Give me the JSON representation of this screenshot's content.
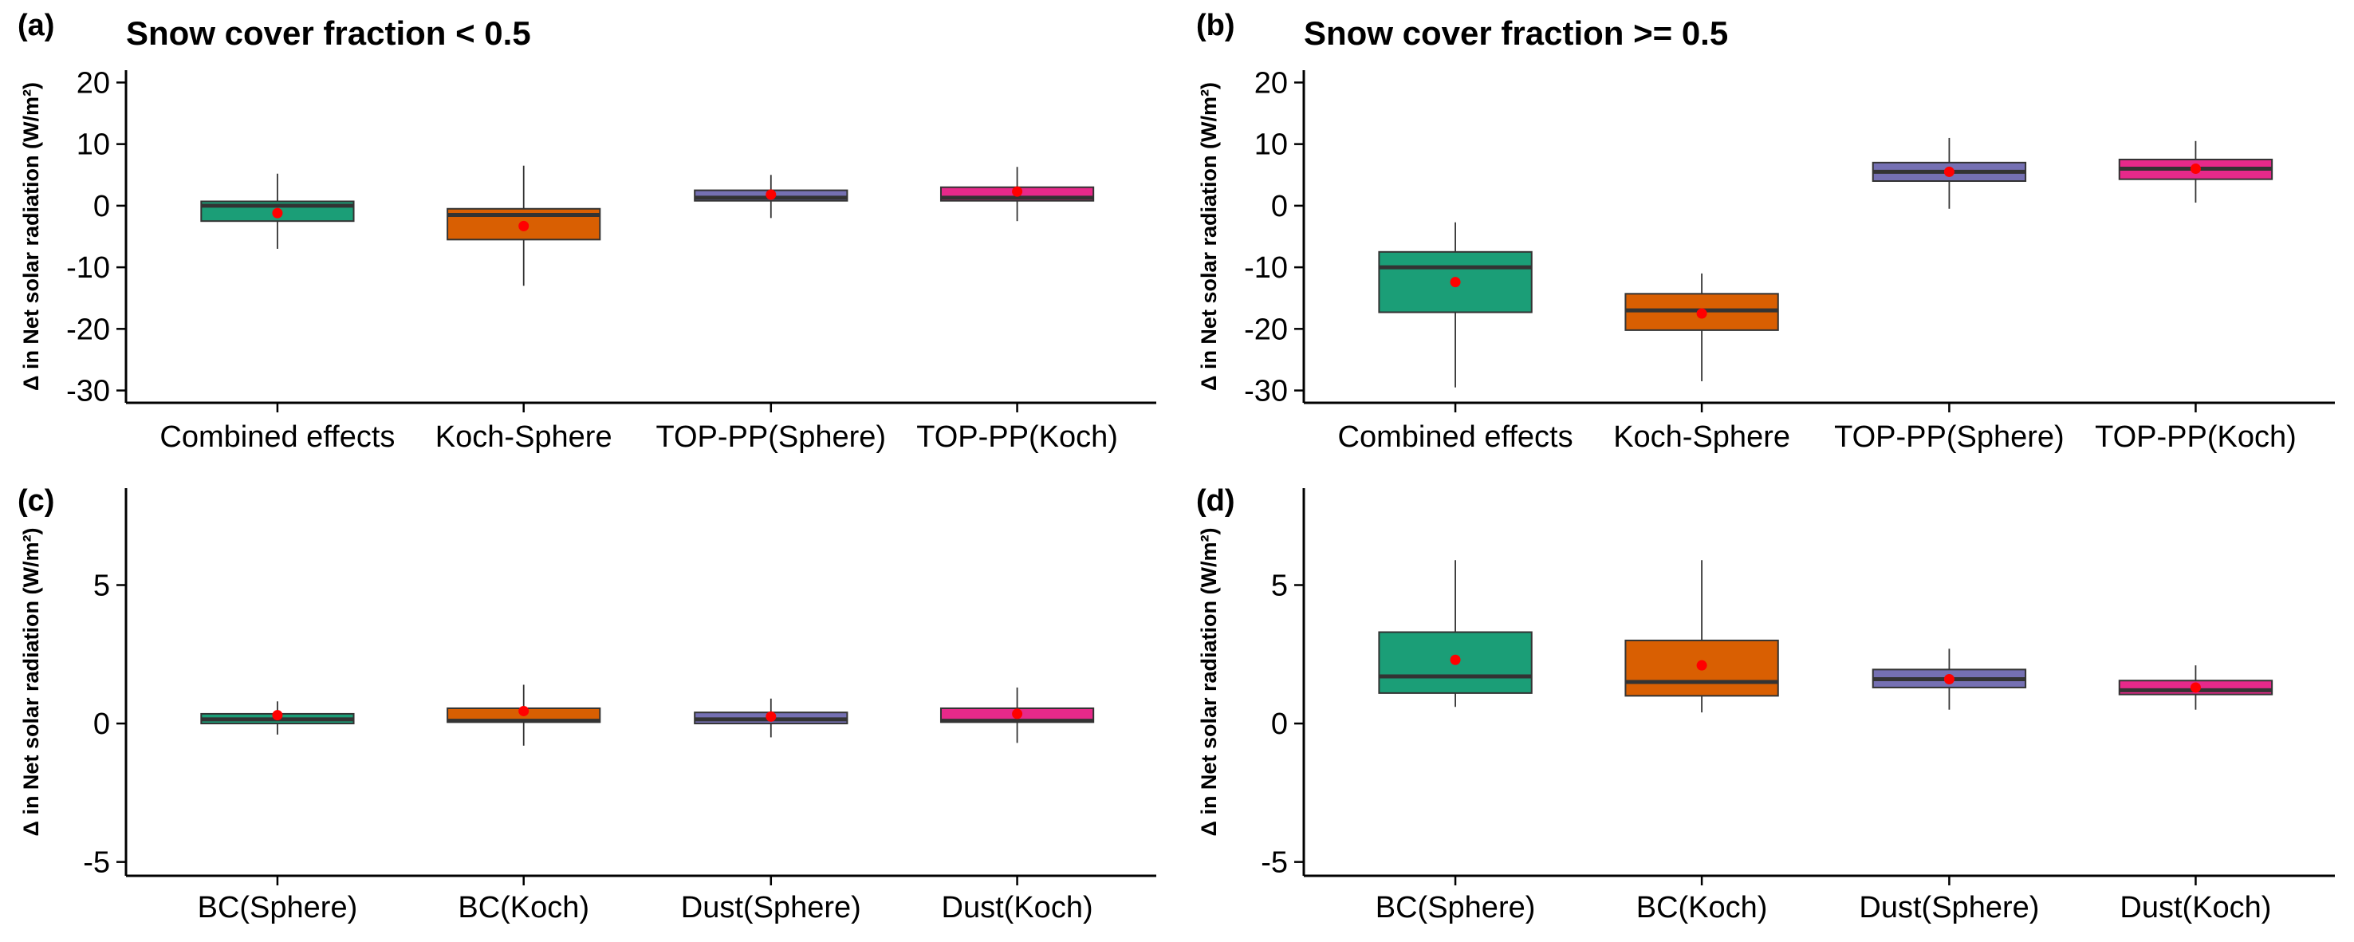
{
  "chart_data": [
    {
      "type": "box",
      "panel_label": "(a)",
      "title": "Snow cover fraction < 0.5",
      "ylabel": "Δ in Net solar radiation (W/m²)",
      "ylim": [
        -32,
        22
      ],
      "yticks": [
        20,
        10,
        0,
        -10,
        -20,
        -30
      ],
      "categories": [
        "Combined effects",
        "Koch-Sphere",
        "TOP-PP(Sphere)",
        "TOP-PP(Koch)"
      ],
      "colors": [
        "#1b9e77",
        "#d95f02",
        "#7570b3",
        "#e7298a"
      ],
      "boxes": [
        {
          "min": -7.0,
          "q1": -2.5,
          "median": 0.0,
          "q3": 0.7,
          "max": 5.2,
          "mean": -1.2
        },
        {
          "min": -13.0,
          "q1": -5.5,
          "median": -1.5,
          "q3": -0.5,
          "max": 6.5,
          "mean": -3.3
        },
        {
          "min": -2.0,
          "q1": 0.8,
          "median": 1.3,
          "q3": 2.5,
          "max": 5.0,
          "mean": 1.8
        },
        {
          "min": -2.5,
          "q1": 0.8,
          "median": 1.3,
          "q3": 3.0,
          "max": 6.3,
          "mean": 2.3
        }
      ],
      "grid": false
    },
    {
      "type": "box",
      "panel_label": "(b)",
      "title": "Snow cover fraction >= 0.5",
      "ylabel": "Δ in Net solar radiation (W/m²)",
      "ylim": [
        -32,
        22
      ],
      "yticks": [
        20,
        10,
        0,
        -10,
        -20,
        -30
      ],
      "categories": [
        "Combined effects",
        "Koch-Sphere",
        "TOP-PP(Sphere)",
        "TOP-PP(Koch)"
      ],
      "colors": [
        "#1b9e77",
        "#d95f02",
        "#7570b3",
        "#e7298a"
      ],
      "boxes": [
        {
          "min": -29.5,
          "q1": -17.3,
          "median": -10.0,
          "q3": -7.5,
          "max": -2.7,
          "mean": -12.4
        },
        {
          "min": -28.5,
          "q1": -20.2,
          "median": -17.0,
          "q3": -14.3,
          "max": -11.0,
          "mean": -17.5
        },
        {
          "min": -0.5,
          "q1": 4.0,
          "median": 5.5,
          "q3": 7.0,
          "max": 11.0,
          "mean": 5.5
        },
        {
          "min": 0.5,
          "q1": 4.3,
          "median": 6.0,
          "q3": 7.5,
          "max": 10.5,
          "mean": 6.0
        }
      ],
      "grid": false
    },
    {
      "type": "box",
      "panel_label": "(c)",
      "title": "",
      "ylabel": "Δ in Net solar radiation (W/m²)",
      "ylim": [
        -5.5,
        8.5
      ],
      "yticks": [
        5,
        0,
        -5
      ],
      "categories": [
        "BC(Sphere)",
        "BC(Koch)",
        "Dust(Sphere)",
        "Dust(Koch)"
      ],
      "colors": [
        "#1b9e77",
        "#d95f02",
        "#7570b3",
        "#e7298a"
      ],
      "boxes": [
        {
          "min": -0.4,
          "q1": 0.0,
          "median": 0.15,
          "q3": 0.35,
          "max": 0.8,
          "mean": 0.3
        },
        {
          "min": -0.8,
          "q1": 0.05,
          "median": 0.1,
          "q3": 0.55,
          "max": 1.4,
          "mean": 0.45
        },
        {
          "min": -0.5,
          "q1": 0.0,
          "median": 0.15,
          "q3": 0.4,
          "max": 0.9,
          "mean": 0.25
        },
        {
          "min": -0.7,
          "q1": 0.05,
          "median": 0.1,
          "q3": 0.55,
          "max": 1.3,
          "mean": 0.35
        }
      ],
      "grid": false
    },
    {
      "type": "box",
      "panel_label": "(d)",
      "title": "",
      "ylabel": "Δ in Net solar radiation (W/m²)",
      "ylim": [
        -5.5,
        8.5
      ],
      "yticks": [
        5,
        0,
        -5
      ],
      "categories": [
        "BC(Sphere)",
        "BC(Koch)",
        "Dust(Sphere)",
        "Dust(Koch)"
      ],
      "colors": [
        "#1b9e77",
        "#d95f02",
        "#7570b3",
        "#e7298a"
      ],
      "boxes": [
        {
          "min": 0.6,
          "q1": 1.1,
          "median": 1.7,
          "q3": 3.3,
          "max": 5.9,
          "mean": 2.3
        },
        {
          "min": 0.4,
          "q1": 1.0,
          "median": 1.5,
          "q3": 3.0,
          "max": 5.9,
          "mean": 2.1
        },
        {
          "min": 0.5,
          "q1": 1.3,
          "median": 1.6,
          "q3": 1.95,
          "max": 2.7,
          "mean": 1.6
        },
        {
          "min": 0.5,
          "q1": 1.05,
          "median": 1.2,
          "q3": 1.55,
          "max": 2.1,
          "mean": 1.3
        }
      ],
      "grid": false
    }
  ],
  "colors": {
    "mean_marker": "#ff0000",
    "median_line": "#333333",
    "axis": "#000000"
  }
}
